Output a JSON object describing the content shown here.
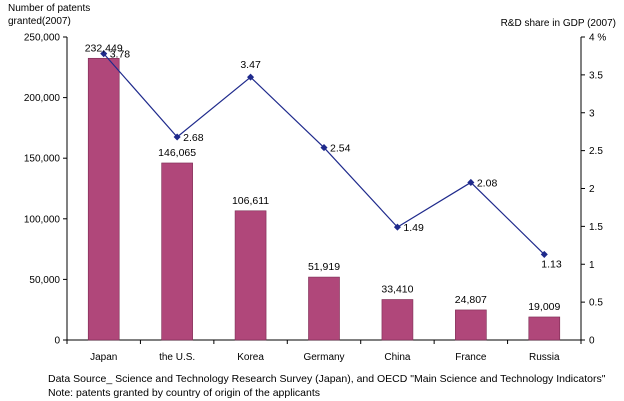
{
  "chart_data": {
    "type": "bar",
    "categories": [
      "Japan",
      "the U.S.",
      "Korea",
      "Germany",
      "China",
      "France",
      "Russia"
    ],
    "series": [
      {
        "name": "Number of patents granted(2007)",
        "type": "bar",
        "axis": "left",
        "values": [
          232449,
          146065,
          106611,
          51919,
          33410,
          24807,
          19009
        ],
        "labels": [
          "232,449",
          "146,065",
          "106,611",
          "51,919",
          "33,410",
          "24,807",
          "19,009"
        ]
      },
      {
        "name": "R&D share in GDP (2007)",
        "type": "line",
        "axis": "right",
        "values": [
          3.78,
          2.68,
          3.47,
          2.54,
          1.49,
          2.08,
          1.13
        ],
        "labels": [
          "3.78",
          "2.68",
          "3.47",
          "2.54",
          "1.49",
          "2.08",
          "1.13"
        ]
      }
    ],
    "left_axis": {
      "title_line1": "Number of patents",
      "title_line2": "granted(2007)",
      "ylim": [
        0,
        250000
      ],
      "ticks": [
        0,
        50000,
        100000,
        150000,
        200000,
        250000
      ],
      "tick_labels": [
        "0",
        "50,000",
        "100,000",
        "150,000",
        "200,000",
        "250,000"
      ]
    },
    "right_axis": {
      "title": "R&D share in GDP (2007)",
      "ylim": [
        0,
        4
      ],
      "ticks": [
        0,
        0.5,
        1,
        1.5,
        2,
        2.5,
        3,
        3.5,
        4
      ],
      "tick_labels": [
        "0",
        "0.5",
        "1",
        "1.5",
        "2",
        "2.5",
        "3",
        "3.5",
        "4 %"
      ]
    },
    "grid": false,
    "colors": {
      "bar": "#b0477a",
      "line": "#1f2a8c",
      "axis": "#000000"
    }
  },
  "notes": {
    "source": "Data Source_  Science and Technology Research Survey (Japan), and OECD \"Main Science and Technology Indicators\"",
    "note": "Note: patents granted by country of origin of the applicants"
  }
}
